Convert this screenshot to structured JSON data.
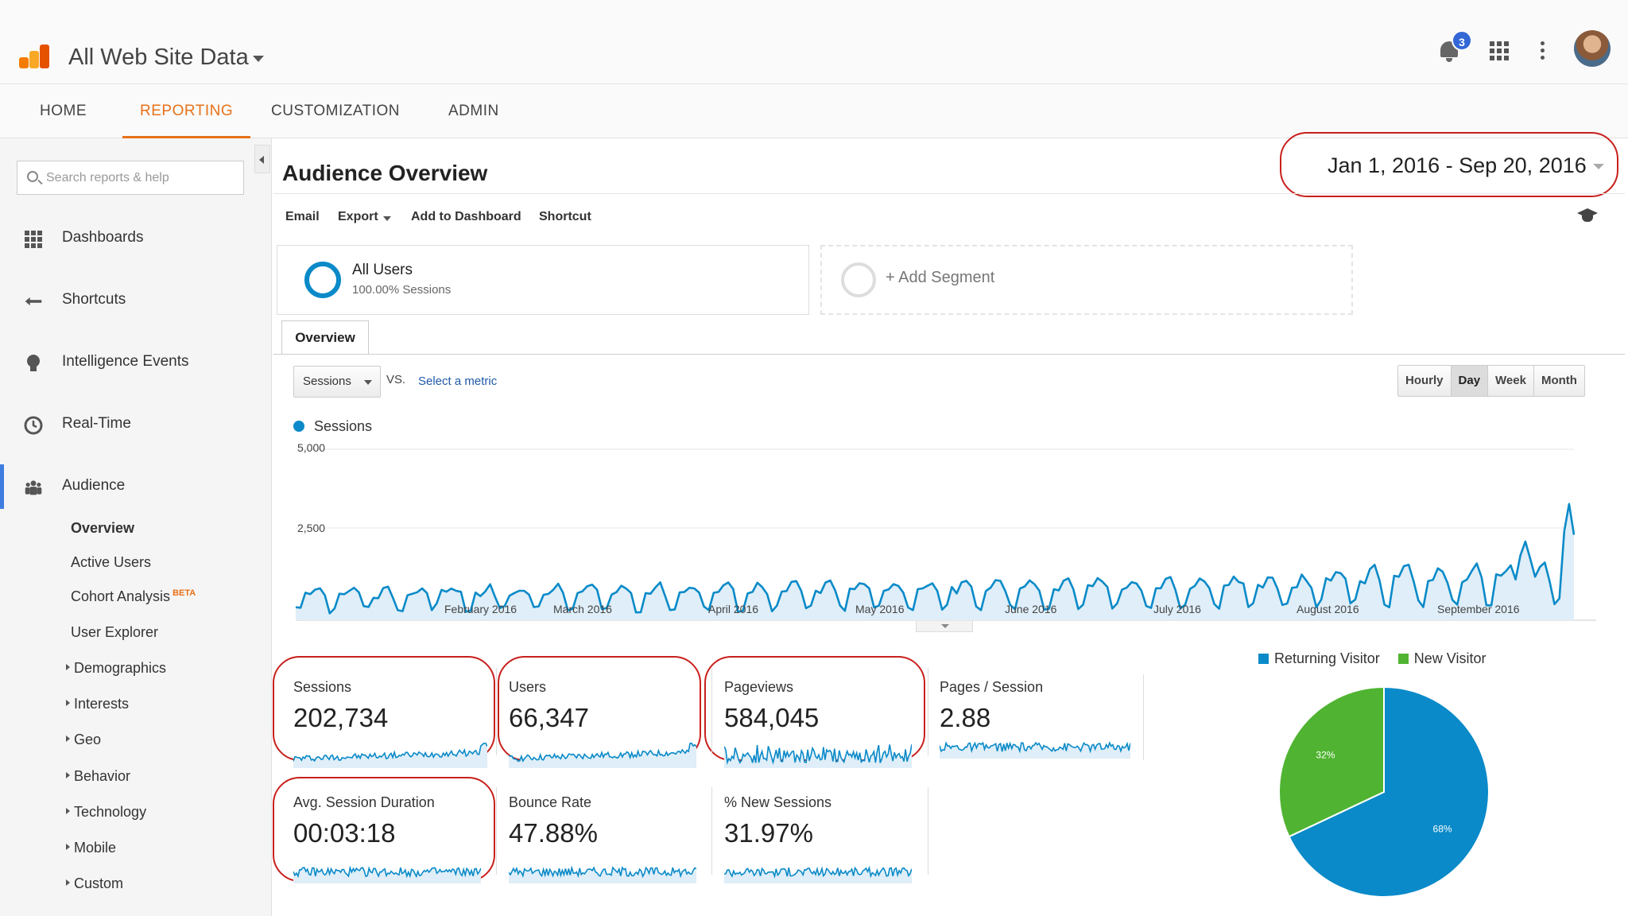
{
  "header": {
    "property_title": "All Web Site Data",
    "notification_count": "3"
  },
  "tabs": [
    {
      "label": "HOME"
    },
    {
      "label": "REPORTING",
      "active": true
    },
    {
      "label": "CUSTOMIZATION"
    },
    {
      "label": "ADMIN"
    }
  ],
  "sidebar": {
    "search_placeholder": "Search reports & help",
    "items": [
      {
        "label": "Dashboards",
        "icon": "dashboard-grid-icon"
      },
      {
        "label": "Shortcuts",
        "icon": "shortcut-arrow-icon"
      },
      {
        "label": "Intelligence Events",
        "icon": "lightbulb-icon"
      },
      {
        "label": "Real-Time",
        "icon": "clock-icon"
      },
      {
        "label": "Audience",
        "icon": "people-icon",
        "active": true
      }
    ],
    "audience_sub": [
      {
        "label": "Overview",
        "bold": true
      },
      {
        "label": "Active Users"
      },
      {
        "label": "Cohort Analysis",
        "badge": "BETA"
      },
      {
        "label": "User Explorer"
      },
      {
        "label": "Demographics",
        "expandable": true
      },
      {
        "label": "Interests",
        "expandable": true
      },
      {
        "label": "Geo",
        "expandable": true
      },
      {
        "label": "Behavior",
        "expandable": true
      },
      {
        "label": "Technology",
        "expandable": true
      },
      {
        "label": "Mobile",
        "expandable": true
      },
      {
        "label": "Custom",
        "expandable": true
      }
    ]
  },
  "report": {
    "title": "Audience Overview",
    "date_range": "Jan 1, 2016 - Sep 20, 2016",
    "actions": [
      "Email",
      "Export",
      "Add to Dashboard",
      "Shortcut"
    ]
  },
  "segments": {
    "all_users_name": "All Users",
    "all_users_sub": "100.00% Sessions",
    "add_label": "+ Add Segment"
  },
  "overview_tab": "Overview",
  "metric_picker": {
    "selected": "Sessions",
    "vs": "VS.",
    "select_metric": "Select a metric"
  },
  "period_buttons": [
    {
      "label": "Hourly"
    },
    {
      "label": "Day",
      "active": true
    },
    {
      "label": "Week"
    },
    {
      "label": "Month"
    }
  ],
  "colors": {
    "accent": "#e8711a",
    "series": "#0a8ac8",
    "series_fill": "#dfeef8",
    "returning": "#0a8ac8",
    "new": "#50b432",
    "highlight": "#c8201c"
  },
  "chart_data": [
    {
      "type": "area",
      "series": [
        {
          "name": "Sessions"
        }
      ],
      "y_ticks": [
        "5,000",
        "2,500"
      ],
      "ylim": [
        0,
        5000
      ],
      "x_ticks": [
        "February 2016",
        "March 2016",
        "April 2016",
        "May 2016",
        "June 2016",
        "July 2016",
        "August 2016",
        "September 2016"
      ],
      "x_range": [
        "2016-01-01",
        "2016-09-20"
      ],
      "grid": true,
      "legend": "top-left",
      "profile": "daily values with weekly dips; typically ~400–1,300 sessions per day, higher peaks in August–September and a spike of ~3,400 near Sep 19"
    },
    {
      "type": "pie",
      "legend": "top",
      "slices": [
        {
          "label": "Returning Visitor",
          "value": 68,
          "display": "68%"
        },
        {
          "label": "New Visitor",
          "value": 32,
          "display": "32%"
        }
      ]
    }
  ],
  "scorecards": [
    {
      "name": "Sessions",
      "value": "202,734",
      "highlighted": true
    },
    {
      "name": "Users",
      "value": "66,347",
      "highlighted": true
    },
    {
      "name": "Pageviews",
      "value": "584,045",
      "highlighted": true
    },
    {
      "name": "Pages / Session",
      "value": "2.88",
      "highlighted": false
    },
    {
      "name": "Avg. Session Duration",
      "value": "00:03:18",
      "highlighted": true
    },
    {
      "name": "Bounce Rate",
      "value": "47.88%",
      "highlighted": false
    },
    {
      "name": "% New Sessions",
      "value": "31.97%",
      "highlighted": false
    }
  ],
  "date_range_highlighted": true
}
